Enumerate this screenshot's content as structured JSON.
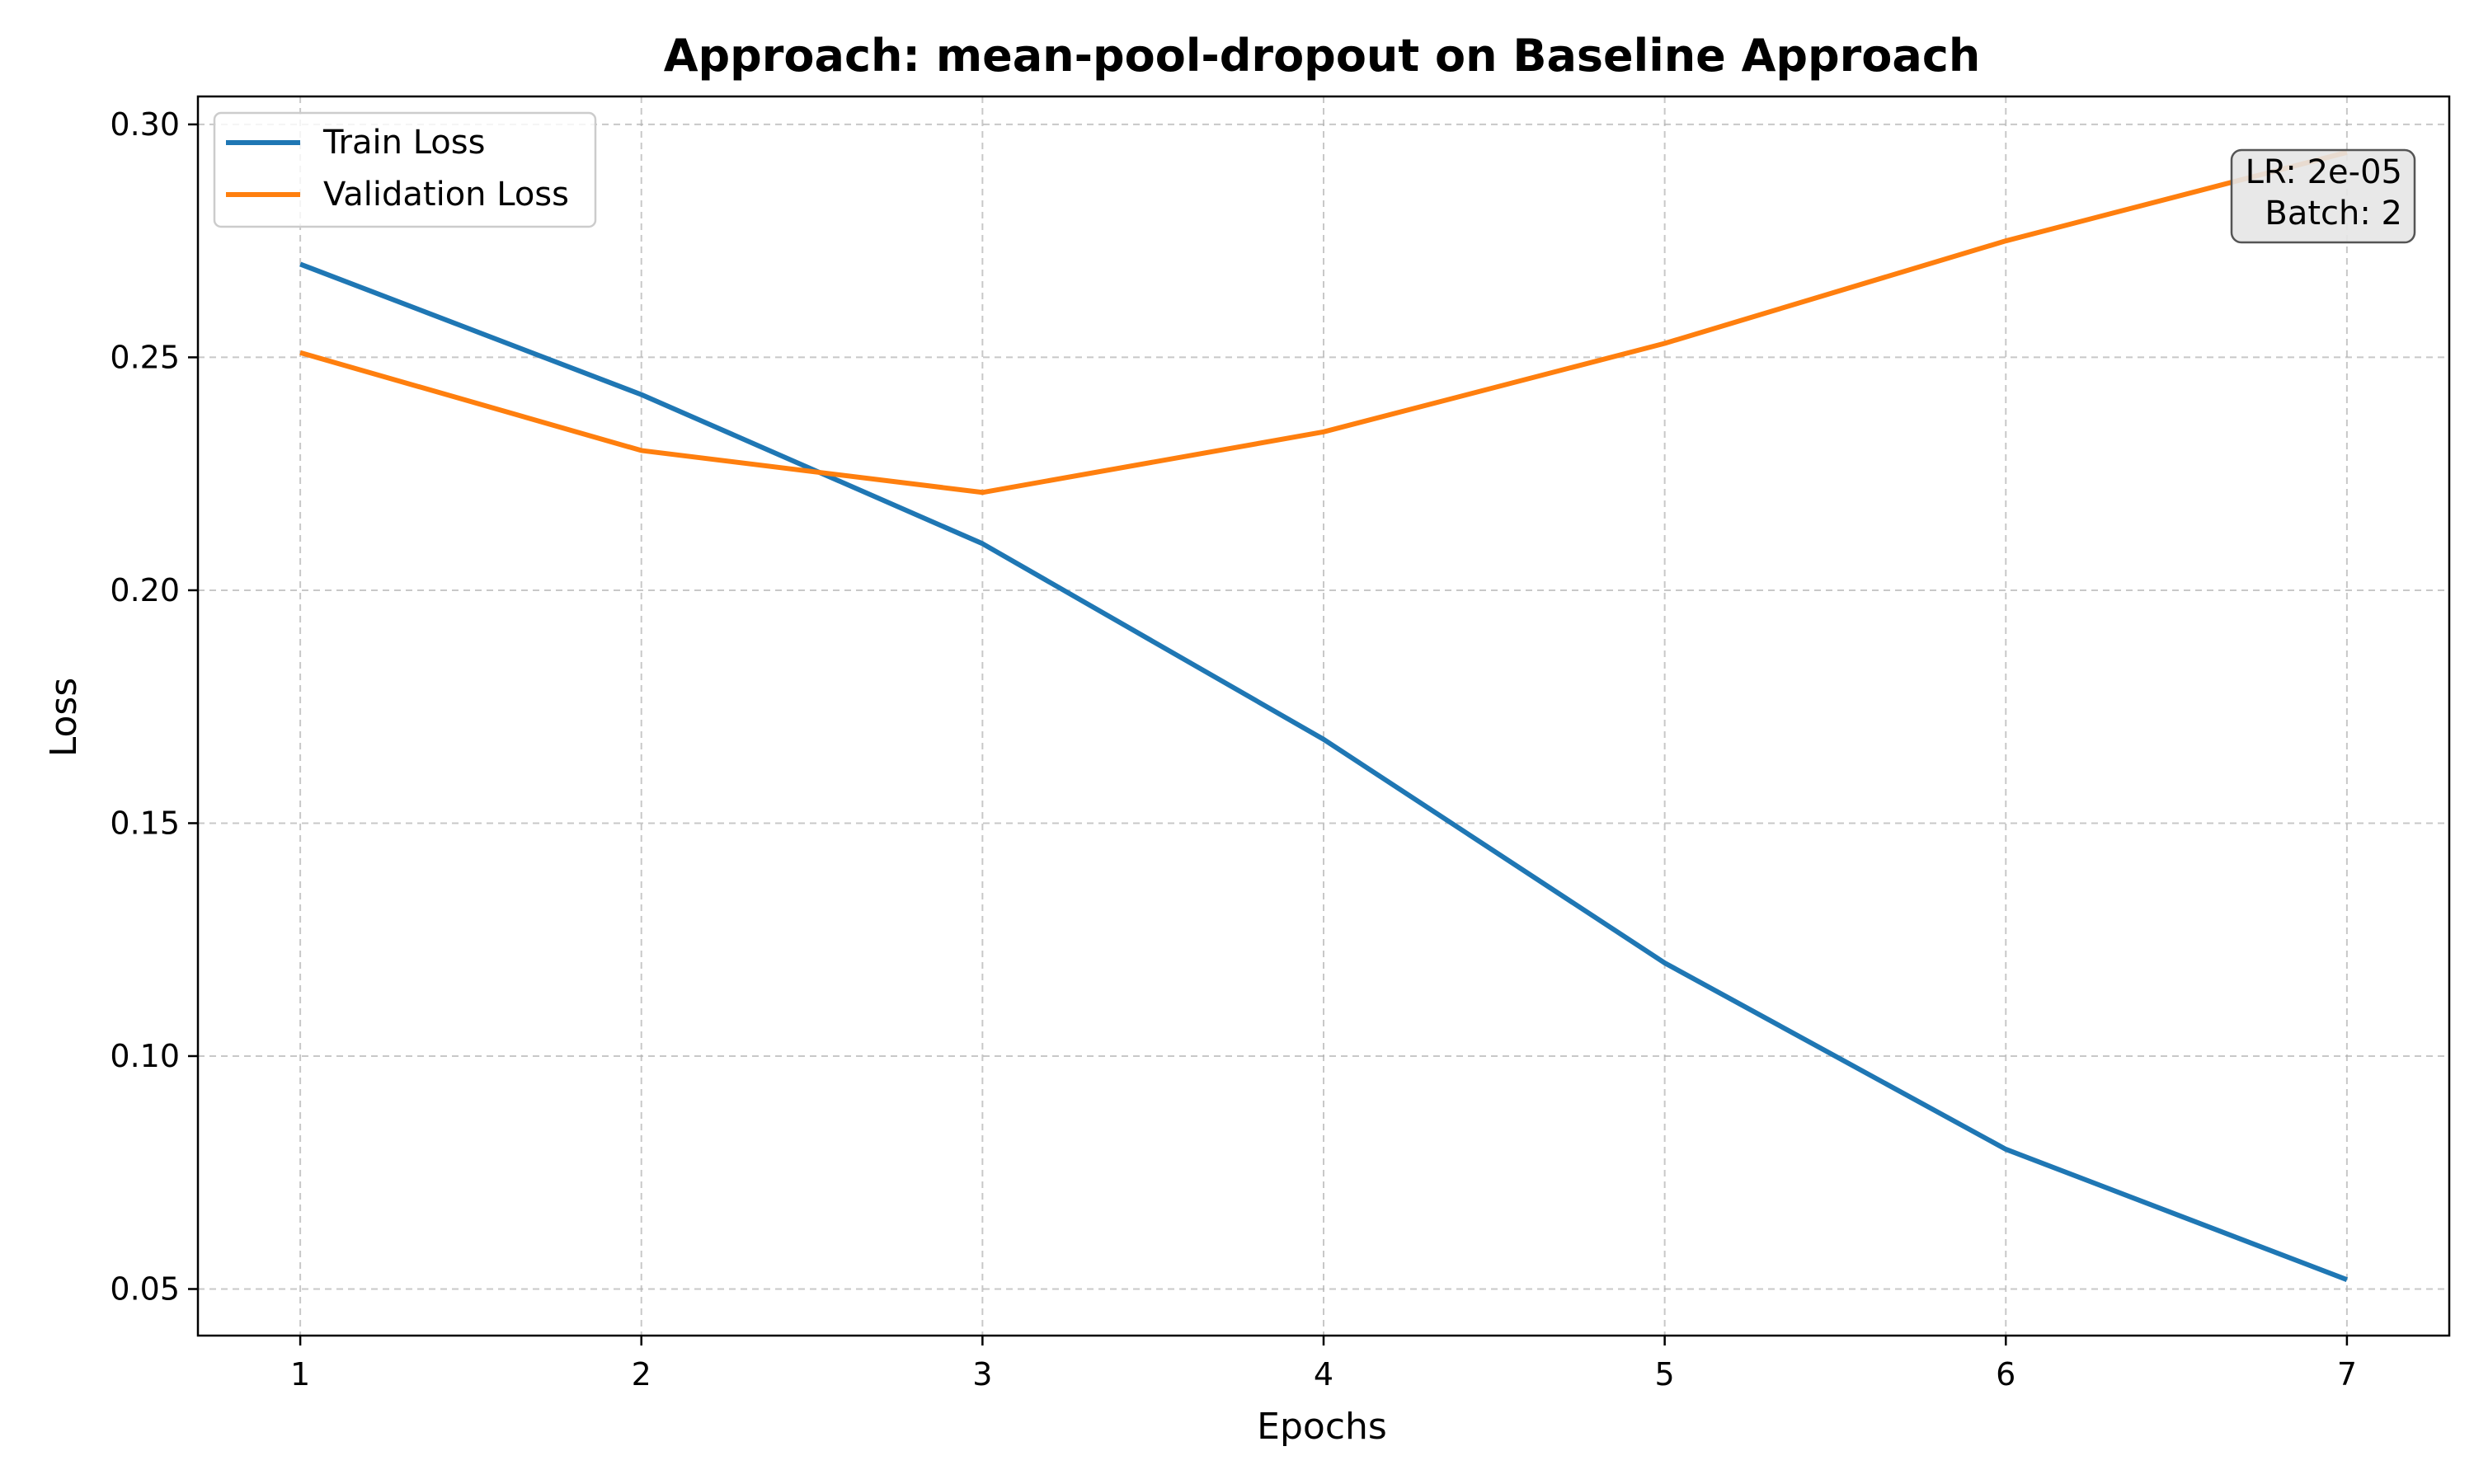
{
  "chart_data": {
    "type": "line",
    "title": "Approach: mean-pool-dropout on Baseline Approach",
    "xlabel": "Epochs",
    "ylabel": "Loss",
    "x": [
      1,
      2,
      3,
      4,
      5,
      6,
      7
    ],
    "xlim": [
      0.7,
      7.3
    ],
    "ylim": [
      0.04,
      0.306
    ],
    "xticks": [
      1,
      2,
      3,
      4,
      5,
      6,
      7
    ],
    "xtick_labels": [
      "1",
      "2",
      "3",
      "4",
      "5",
      "6",
      "7"
    ],
    "yticks": [
      0.05,
      0.1,
      0.15,
      0.2,
      0.25,
      0.3
    ],
    "ytick_labels": [
      "0.05",
      "0.10",
      "0.15",
      "0.20",
      "0.25",
      "0.30"
    ],
    "grid": true,
    "legend_position": "top-left",
    "series": [
      {
        "name": "Train Loss",
        "color": "#1f77b4",
        "values": [
          0.27,
          0.242,
          0.21,
          0.168,
          0.12,
          0.08,
          0.052
        ]
      },
      {
        "name": "Validation Loss",
        "color": "#ff7f0e",
        "values": [
          0.251,
          0.23,
          0.221,
          0.234,
          0.253,
          0.275,
          0.294
        ]
      }
    ],
    "annotation": {
      "lines": [
        "LR: 2e-05",
        "Batch: 2"
      ],
      "position": "top-right"
    }
  }
}
